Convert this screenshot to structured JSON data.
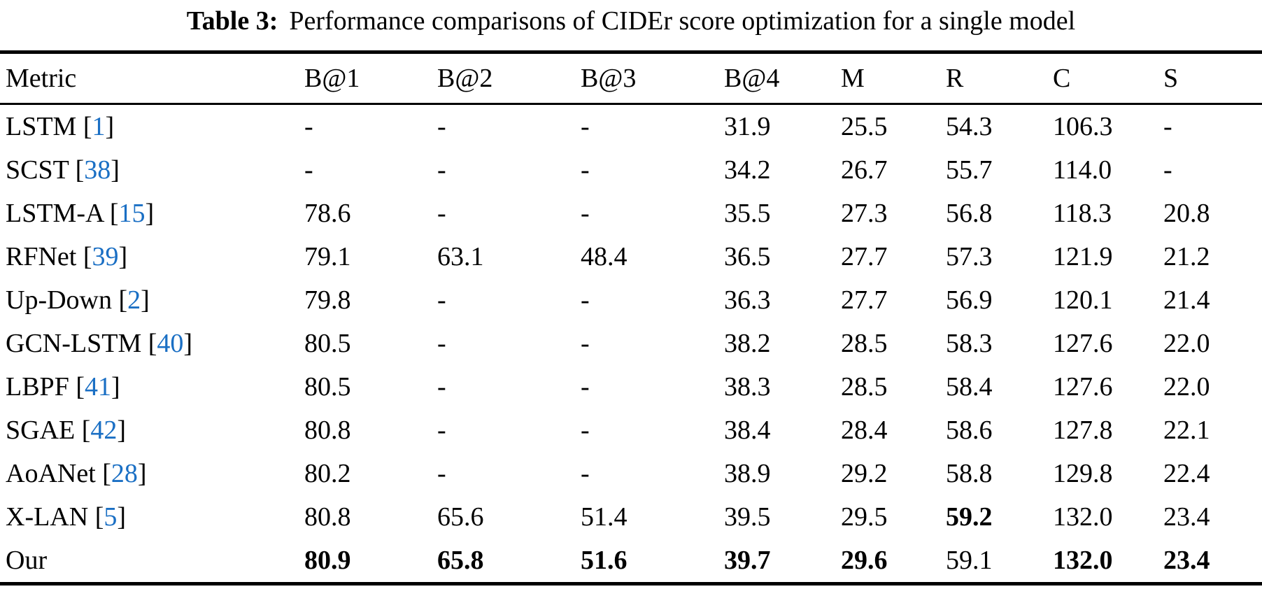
{
  "caption": {
    "label": "Table 3:",
    "text": "Performance comparisons of CIDEr score optimization for a single model"
  },
  "colors": {
    "citation_link": "#1a6fc4",
    "text": "#000000",
    "background": "#ffffff",
    "rule": "#000000"
  },
  "table": {
    "columns": [
      "Metric",
      "B@1",
      "B@2",
      "B@3",
      "B@4",
      "M",
      "R",
      "C",
      "S"
    ],
    "rows": [
      {
        "name": "LSTM",
        "cite": "1",
        "cells": [
          "-",
          "-",
          "-",
          "31.9",
          "25.5",
          "54.3",
          "106.3",
          "-"
        ],
        "bold": [
          false,
          false,
          false,
          false,
          false,
          false,
          false,
          false
        ]
      },
      {
        "name": "SCST",
        "cite": "38",
        "cells": [
          "-",
          "-",
          "-",
          "34.2",
          "26.7",
          "55.7",
          "114.0",
          "-"
        ],
        "bold": [
          false,
          false,
          false,
          false,
          false,
          false,
          false,
          false
        ]
      },
      {
        "name": "LSTM-A",
        "cite": "15",
        "cells": [
          "78.6",
          "-",
          "-",
          "35.5",
          "27.3",
          "56.8",
          "118.3",
          "20.8"
        ],
        "bold": [
          false,
          false,
          false,
          false,
          false,
          false,
          false,
          false
        ]
      },
      {
        "name": "RFNet",
        "cite": "39",
        "cells": [
          "79.1",
          "63.1",
          "48.4",
          "36.5",
          "27.7",
          "57.3",
          "121.9",
          "21.2"
        ],
        "bold": [
          false,
          false,
          false,
          false,
          false,
          false,
          false,
          false
        ]
      },
      {
        "name": "Up-Down",
        "cite": "2",
        "cells": [
          "79.8",
          "-",
          "-",
          "36.3",
          "27.7",
          "56.9",
          "120.1",
          "21.4"
        ],
        "bold": [
          false,
          false,
          false,
          false,
          false,
          false,
          false,
          false
        ]
      },
      {
        "name": "GCN-LSTM",
        "cite": "40",
        "cells": [
          "80.5",
          "-",
          "-",
          "38.2",
          "28.5",
          "58.3",
          "127.6",
          "22.0"
        ],
        "bold": [
          false,
          false,
          false,
          false,
          false,
          false,
          false,
          false
        ]
      },
      {
        "name": "LBPF",
        "cite": "41",
        "cells": [
          "80.5",
          "-",
          "-",
          "38.3",
          "28.5",
          "58.4",
          "127.6",
          "22.0"
        ],
        "bold": [
          false,
          false,
          false,
          false,
          false,
          false,
          false,
          false
        ]
      },
      {
        "name": "SGAE",
        "cite": "42",
        "cells": [
          "80.8",
          "-",
          "-",
          "38.4",
          "28.4",
          "58.6",
          "127.8",
          "22.1"
        ],
        "bold": [
          false,
          false,
          false,
          false,
          false,
          false,
          false,
          false
        ]
      },
      {
        "name": "AoANet",
        "cite": "28",
        "cells": [
          "80.2",
          "-",
          "-",
          "38.9",
          "29.2",
          "58.8",
          "129.8",
          "22.4"
        ],
        "bold": [
          false,
          false,
          false,
          false,
          false,
          false,
          false,
          false
        ]
      },
      {
        "name": "X-LAN",
        "cite": "5",
        "cells": [
          "80.8",
          "65.6",
          "51.4",
          "39.5",
          "29.5",
          "59.2",
          "132.0",
          "23.4"
        ],
        "bold": [
          false,
          false,
          false,
          false,
          false,
          true,
          false,
          false
        ]
      },
      {
        "name": "Our",
        "cite": null,
        "cells": [
          "80.9",
          "65.8",
          "51.6",
          "39.7",
          "29.6",
          "59.1",
          "132.0",
          "23.4"
        ],
        "bold": [
          true,
          true,
          true,
          true,
          true,
          false,
          true,
          true
        ]
      }
    ]
  }
}
